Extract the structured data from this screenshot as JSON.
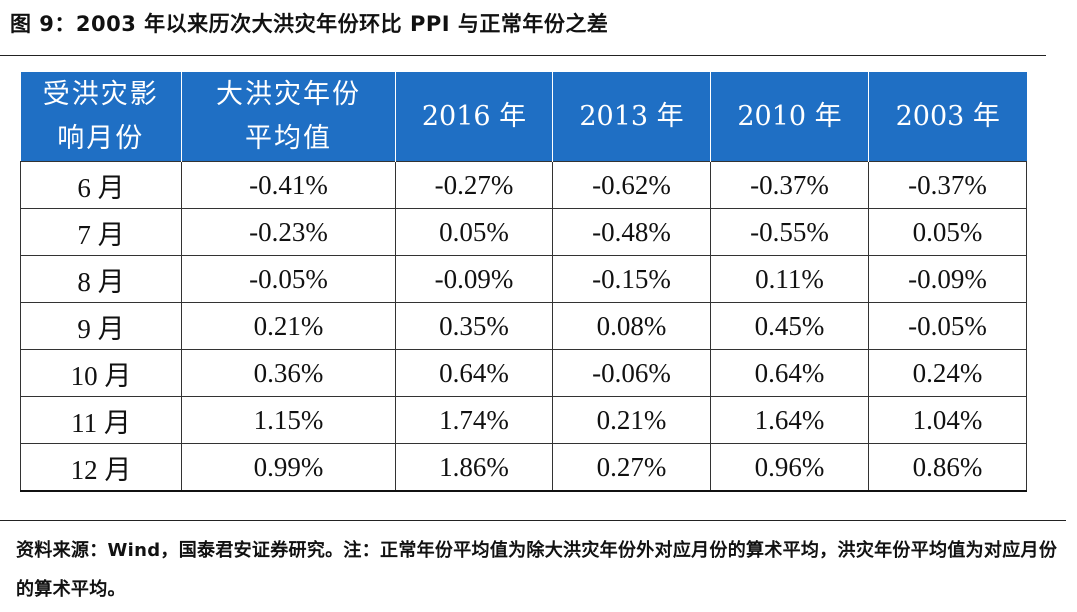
{
  "figure": {
    "title": "图 9：2003 年以来历次大洪灾年份环比 PPI 与正常年份之差"
  },
  "table": {
    "headers": [
      "受洪灾影响月份",
      "大洪灾年份平均值",
      "2016 年",
      "2013 年",
      "2010 年",
      "2003 年"
    ],
    "rows": [
      [
        "6 月",
        "-0.41%",
        "-0.27%",
        "-0.62%",
        "-0.37%",
        "-0.37%"
      ],
      [
        "7 月",
        "-0.23%",
        "0.05%",
        "-0.48%",
        "-0.55%",
        "0.05%"
      ],
      [
        "8 月",
        "-0.05%",
        "-0.09%",
        "-0.15%",
        "0.11%",
        "-0.09%"
      ],
      [
        "9 月",
        "0.21%",
        "0.35%",
        "0.08%",
        "0.45%",
        "-0.05%"
      ],
      [
        "10 月",
        "0.36%",
        "0.64%",
        "-0.06%",
        "0.64%",
        "0.24%"
      ],
      [
        "11 月",
        "1.15%",
        "1.74%",
        "0.21%",
        "1.64%",
        "1.04%"
      ],
      [
        "12 月",
        "0.99%",
        "1.86%",
        "0.27%",
        "0.96%",
        "0.86%"
      ]
    ]
  },
  "note": {
    "text": "资料来源：Wind，国泰君安证券研究。注：正常年份平均值为除大洪灾年份外对应月份的算术平均，洪灾年份平均值为对应月份的算术平均。"
  },
  "colors": {
    "header_bg": "#1f6fc4",
    "header_text": "#ffffff"
  }
}
